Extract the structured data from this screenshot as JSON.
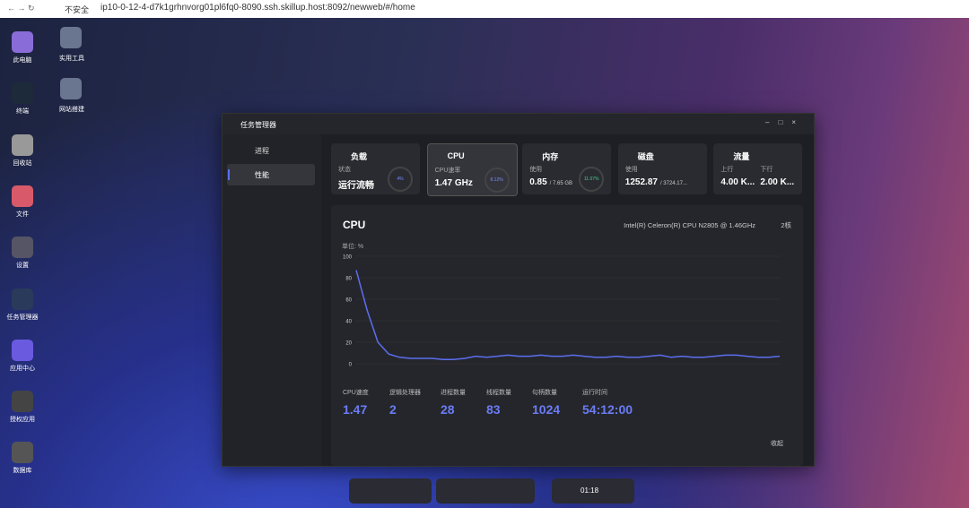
{
  "browser": {
    "security": "不安全",
    "url": "ip10-0-12-4-d7k1grhnvorg01pl6fq0-8090.ssh.skillup.host:8092/newweb/#/home"
  },
  "desktop": {
    "column1": [
      "此电脑",
      "终端",
      "回收站",
      "文件",
      "设置",
      "任务管理器",
      "应用中心",
      "授权应用",
      "数据库"
    ],
    "column2": [
      "实用工具",
      "网站搭建"
    ]
  },
  "window": {
    "title": "任务管理器",
    "sidebar": [
      "进程",
      "性能"
    ],
    "cards": [
      {
        "title": "负载",
        "label": "状态",
        "value": "运行流畅",
        "gauge": "4%"
      },
      {
        "title": "CPU",
        "label": "CPU速率",
        "value": "1.47 GHz",
        "gauge": "8.12%"
      },
      {
        "title": "内存",
        "label": "使用",
        "value": "0.85",
        "total": "/ 7.65 GB",
        "gauge": "11.07%"
      },
      {
        "title": "磁盘",
        "label": "使用",
        "value": "1252.87",
        "total": "/ 3724.17..."
      },
      {
        "title": "流量",
        "label": "上行",
        "value": "4.00 K...",
        "label2": "下行",
        "value2": "2.00 K..."
      }
    ],
    "cpu_chart": {
      "type": "line",
      "title": "CPU",
      "processor": "Intel(R) Celeron(R) CPU N2805 @ 1.46GHz",
      "cores": "2核",
      "unit": "单位: %",
      "color": "#5b6ef0",
      "ylim": [
        0,
        100
      ],
      "yticks": [
        0,
        20,
        40,
        60,
        80,
        100
      ],
      "grid": true,
      "values": [
        87,
        50,
        20,
        9,
        6,
        5,
        5,
        5,
        4,
        4,
        5,
        7,
        6,
        7,
        8,
        7,
        7,
        8,
        7,
        7,
        8,
        7,
        6,
        6,
        7,
        6,
        6,
        7,
        8,
        6,
        7,
        6,
        6,
        7,
        8,
        8,
        7,
        6,
        6,
        7
      ]
    },
    "stats": [
      {
        "label": "CPU速度",
        "value": "1.47"
      },
      {
        "label": "逻辑处理器",
        "value": "2"
      },
      {
        "label": "进程数量",
        "value": "28"
      },
      {
        "label": "线程数量",
        "value": "83"
      },
      {
        "label": "句柄数量",
        "value": "1024"
      },
      {
        "label": "运行时间",
        "value": "54:12:00"
      }
    ],
    "collapse": "收起"
  },
  "taskbar": {
    "clock": "01:18"
  }
}
